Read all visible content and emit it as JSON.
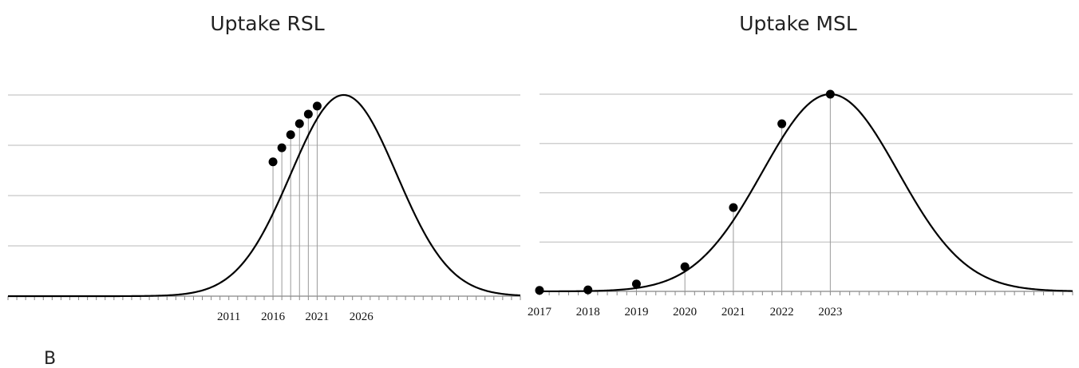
{
  "panel_label": "B",
  "colors": {
    "curve": "#000000",
    "gridline": "#c8c8c8",
    "drop_line": "#9a9a9a",
    "axis": "#888888"
  },
  "chart_data": [
    {
      "type": "line",
      "title": "Uptake RSL",
      "xlabel": "",
      "ylabel": "",
      "grid": true,
      "xlim": [
        1986,
        2044
      ],
      "ylim": [
        0,
        4
      ],
      "x_ticks": [
        2011,
        2016,
        2021,
        2026
      ],
      "curve": {
        "shape": "bell",
        "peak_x": 2024,
        "peak_y": 4,
        "sd": 6
      },
      "points": [
        {
          "x": 2016,
          "y": 2.67
        },
        {
          "x": 2017,
          "y": 2.95
        },
        {
          "x": 2018,
          "y": 3.21
        },
        {
          "x": 2019,
          "y": 3.43
        },
        {
          "x": 2020,
          "y": 3.62
        },
        {
          "x": 2021,
          "y": 3.78
        }
      ]
    },
    {
      "type": "line",
      "title": "Uptake MSL",
      "xlabel": "",
      "ylabel": "",
      "grid": true,
      "xlim": [
        2017,
        2028
      ],
      "ylim": [
        0,
        4
      ],
      "x_ticks": [
        2017,
        2018,
        2019,
        2020,
        2021,
        2022,
        2023
      ],
      "curve": {
        "shape": "bell",
        "peak_x": 2023,
        "peak_y": 4,
        "sd": 1.4
      },
      "points": [
        {
          "x": 2017,
          "y": 0.02
        },
        {
          "x": 2018,
          "y": 0.03
        },
        {
          "x": 2019,
          "y": 0.15
        },
        {
          "x": 2020,
          "y": 0.5
        },
        {
          "x": 2021,
          "y": 1.7
        },
        {
          "x": 2022,
          "y": 3.4
        },
        {
          "x": 2023,
          "y": 4.0
        }
      ]
    }
  ]
}
